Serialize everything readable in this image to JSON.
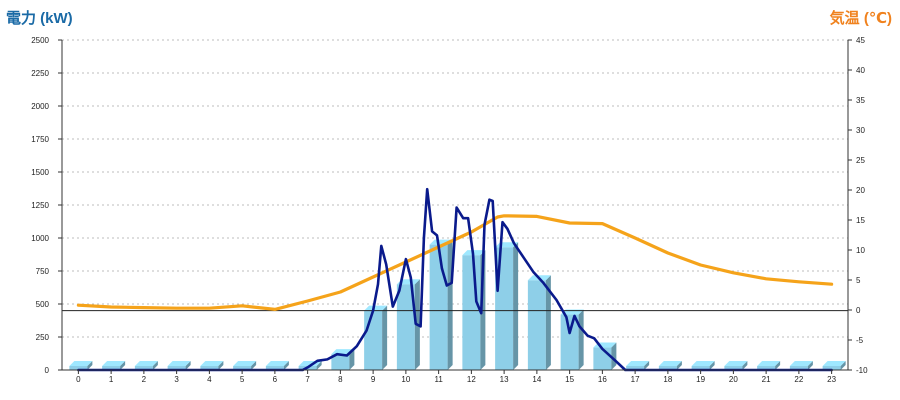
{
  "chart_data": {
    "type": "bar+line",
    "left_axis": {
      "label": "電力 (kW)",
      "ticks": [
        "2500",
        "2250",
        "2000",
        "1750",
        "1500",
        "1250",
        "1000",
        "750",
        "500",
        "250",
        "0"
      ],
      "min": 0,
      "max": 2500,
      "color": "#1a6aa6"
    },
    "right_axis": {
      "label": "気温 (℃)",
      "ticks": [
        "45",
        "40",
        "35",
        "30",
        "25",
        "20",
        "15",
        "10",
        "5",
        "0",
        "-5",
        "-10"
      ],
      "min": -10,
      "max": 45,
      "color": "#f0821e"
    },
    "categories": [
      "0",
      "1",
      "2",
      "3",
      "4",
      "5",
      "6",
      "7",
      "8",
      "9",
      "10",
      "11",
      "12",
      "13",
      "14",
      "15",
      "16",
      "17",
      "18",
      "19",
      "20",
      "21",
      "22",
      "23"
    ],
    "grid": true,
    "bars": {
      "axis": "left",
      "color": "#8ecfe8",
      "values": [
        0,
        0,
        0,
        0,
        0,
        0,
        0,
        30,
        120,
        450,
        650,
        950,
        870,
        930,
        680,
        420,
        170,
        0,
        0,
        0,
        0,
        0,
        0,
        0
      ]
    },
    "power_line": {
      "axis": "left",
      "color": "#0a1a8c",
      "points": [
        [
          0,
          0
        ],
        [
          1,
          0
        ],
        [
          2,
          0
        ],
        [
          3,
          0
        ],
        [
          4,
          0
        ],
        [
          5,
          0
        ],
        [
          6,
          0
        ],
        [
          6.85,
          0
        ],
        [
          7,
          20
        ],
        [
          7.3,
          70
        ],
        [
          7.6,
          80
        ],
        [
          7.9,
          120
        ],
        [
          8.2,
          110
        ],
        [
          8.5,
          180
        ],
        [
          8.8,
          300
        ],
        [
          9.0,
          450
        ],
        [
          9.15,
          650
        ],
        [
          9.25,
          940
        ],
        [
          9.4,
          800
        ],
        [
          9.6,
          480
        ],
        [
          9.8,
          600
        ],
        [
          10.0,
          840
        ],
        [
          10.15,
          700
        ],
        [
          10.3,
          350
        ],
        [
          10.45,
          330
        ],
        [
          10.55,
          1000
        ],
        [
          10.65,
          1370
        ],
        [
          10.8,
          1050
        ],
        [
          10.95,
          1020
        ],
        [
          11.1,
          770
        ],
        [
          11.25,
          640
        ],
        [
          11.4,
          660
        ],
        [
          11.55,
          1230
        ],
        [
          11.75,
          1150
        ],
        [
          11.9,
          1150
        ],
        [
          12.05,
          880
        ],
        [
          12.15,
          520
        ],
        [
          12.3,
          430
        ],
        [
          12.4,
          1100
        ],
        [
          12.55,
          1290
        ],
        [
          12.65,
          1280
        ],
        [
          12.8,
          600
        ],
        [
          12.95,
          1120
        ],
        [
          13.1,
          1070
        ],
        [
          13.3,
          960
        ],
        [
          13.6,
          850
        ],
        [
          13.9,
          740
        ],
        [
          14.2,
          660
        ],
        [
          14.6,
          530
        ],
        [
          14.9,
          400
        ],
        [
          15.0,
          280
        ],
        [
          15.15,
          410
        ],
        [
          15.3,
          330
        ],
        [
          15.55,
          260
        ],
        [
          15.75,
          240
        ],
        [
          16.0,
          160
        ],
        [
          16.4,
          70
        ],
        [
          16.7,
          0
        ],
        [
          17,
          0
        ],
        [
          18,
          0
        ],
        [
          19,
          0
        ],
        [
          20,
          0
        ],
        [
          21,
          0
        ],
        [
          22,
          0
        ],
        [
          23,
          0
        ]
      ]
    },
    "temperature_line": {
      "axis": "right",
      "color": "#f5a31a",
      "points": [
        [
          0,
          0.8
        ],
        [
          1,
          0.5
        ],
        [
          2,
          0.4
        ],
        [
          3,
          0.3
        ],
        [
          4,
          0.3
        ],
        [
          5,
          0.7
        ],
        [
          6,
          0.1
        ],
        [
          7,
          1.5
        ],
        [
          8,
          3.0
        ],
        [
          9,
          5.5
        ],
        [
          10,
          8.0
        ],
        [
          11,
          10.5
        ],
        [
          12,
          13.0
        ],
        [
          12.8,
          15.5
        ],
        [
          13,
          15.7
        ],
        [
          14,
          15.6
        ],
        [
          15,
          14.5
        ],
        [
          16,
          14.4
        ],
        [
          17,
          12.0
        ],
        [
          18,
          9.5
        ],
        [
          19,
          7.5
        ],
        [
          20,
          6.2
        ],
        [
          21,
          5.2
        ],
        [
          22,
          4.7
        ],
        [
          23,
          4.3
        ]
      ]
    },
    "reference_line_left": 450
  }
}
